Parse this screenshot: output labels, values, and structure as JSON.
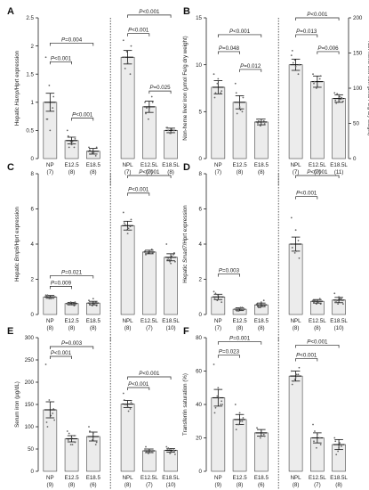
{
  "chart_data": [
    {
      "panel": "A",
      "type": "bar",
      "ylabel": "Hepatic Hamp/Hprt expression",
      "ylim": [
        0,
        2.5
      ],
      "yticks": [
        0,
        0.5,
        1.0,
        1.5,
        2.0,
        2.5
      ],
      "categories": [
        "NP",
        "E12.5",
        "E18.5",
        "NPL",
        "E12.5L",
        "E18.5L"
      ],
      "n": [
        "(7)",
        "(8)",
        "(8)",
        "(7)",
        "(7)",
        "(8)"
      ],
      "values": [
        1.0,
        0.32,
        0.13,
        1.8,
        0.92,
        0.5
      ],
      "errors": [
        0.16,
        0.06,
        0.05,
        0.12,
        0.1,
        0.04
      ],
      "points": [
        [
          1.8,
          1.3,
          0.9,
          0.7,
          0.5,
          1.1,
          0.7
        ],
        [
          0.5,
          0.3,
          0.2,
          0.4,
          0.25,
          0.35,
          0.2,
          0.3
        ],
        [
          0.2,
          0.1,
          0.05,
          0.15,
          0.1,
          0.2,
          0.08,
          0.12
        ],
        [
          2.1,
          1.9,
          1.5,
          1.8,
          1.7,
          2.0,
          1.6
        ],
        [
          1.0,
          0.7,
          1.1,
          0.8,
          0.9,
          1.0,
          0.9
        ],
        [
          0.55,
          0.45,
          0.5,
          0.55,
          0.45,
          0.5,
          0.5,
          0.52
        ]
      ],
      "brackets": [
        {
          "from": 0,
          "to": 2,
          "label": "P=0.004",
          "y": 2.05
        },
        {
          "from": 0,
          "to": 1,
          "label": "P<0.001",
          "y": 1.72
        },
        {
          "from": 1,
          "to": 2,
          "label": "P<0.001",
          "y": 0.72
        },
        {
          "from": 3,
          "to": 5,
          "label": "P<0.001",
          "y": 2.55
        },
        {
          "from": 3,
          "to": 4,
          "label": "P<0.001",
          "y": 2.22
        },
        {
          "from": 4,
          "to": 5,
          "label": "P=0.025",
          "y": 1.2
        }
      ]
    },
    {
      "panel": "B",
      "type": "bar",
      "ylabel": "Non-heme liver iron (μmol Fe/g dry weight)",
      "ylabel_right": "Non-heme liver iron (μmol Fe/g dry weight)",
      "ylim": [
        0,
        15
      ],
      "yticks": [
        0,
        5,
        10,
        15
      ],
      "ylim_right": [
        0,
        200
      ],
      "yticks_right": [
        0,
        50,
        100,
        150,
        200
      ],
      "categories": [
        "NP",
        "E12.5",
        "E18.5",
        "NPL",
        "E12.5L",
        "E18.5L"
      ],
      "n": [
        "(7)",
        "(8)",
        "(8)",
        "(7)",
        "(7)",
        "(11)"
      ],
      "values": [
        7.6,
        6.0,
        3.9,
        10.0,
        8.2,
        6.4
      ],
      "errors": [
        0.7,
        0.7,
        0.3,
        0.6,
        0.6,
        0.4
      ],
      "points": [
        [
          9,
          8,
          7,
          6.5,
          8.5,
          7.2,
          7
        ],
        [
          8,
          6,
          5,
          7,
          5.5,
          6.5,
          4.8,
          5.2
        ],
        [
          4.2,
          3.5,
          4,
          3.8,
          4.1,
          3.7,
          4.0,
          3.9
        ],
        [
          11,
          10.5,
          9,
          11.5,
          9.8,
          10,
          10.2
        ],
        [
          9,
          7.5,
          8.5,
          8,
          7.8,
          8.8,
          8.2
        ],
        [
          7,
          6,
          6.5,
          6.2,
          6.8,
          6.4,
          5.9,
          6.6,
          6.1,
          6.9,
          6.3
        ]
      ],
      "brackets": [
        {
          "from": 0,
          "to": 2,
          "label": "P<0.001",
          "y": 13.2
        },
        {
          "from": 0,
          "to": 1,
          "label": "P=0.048",
          "y": 11.4
        },
        {
          "from": 1,
          "to": 2,
          "label": "P=0.012",
          "y": 9.5
        },
        {
          "from": 3,
          "to": 5,
          "label": "P<0.001",
          "y": 15.0
        },
        {
          "from": 3,
          "to": 4,
          "label": "P=0.013",
          "y": 13.2
        },
        {
          "from": 4,
          "to": 5,
          "label": "P=0.006",
          "y": 11.4
        }
      ]
    },
    {
      "panel": "C",
      "type": "bar",
      "ylabel": "Hepatic Bmp6/Hprt expression",
      "ylim": [
        0,
        8
      ],
      "yticks": [
        0,
        2,
        4,
        6,
        8
      ],
      "categories": [
        "NP",
        "E12.5",
        "E18.5",
        "NPL",
        "E12.5L",
        "E18.5L"
      ],
      "n": [
        "(8)",
        "(8)",
        "(8)",
        "(8)",
        "(7)",
        "(10)"
      ],
      "values": [
        1.0,
        0.62,
        0.65,
        5.05,
        3.55,
        3.25
      ],
      "errors": [
        0.08,
        0.07,
        0.1,
        0.25,
        0.1,
        0.2
      ],
      "points": [
        [
          1.1,
          0.9,
          1.0,
          1.05,
          0.95,
          1.0,
          1.1,
          0.9
        ],
        [
          0.6,
          0.7,
          0.5,
          0.65,
          0.55,
          0.7,
          0.6,
          0.65
        ],
        [
          0.8,
          0.5,
          0.7,
          0.6,
          0.9,
          0.5,
          0.65,
          0.6
        ],
        [
          5.8,
          4.8,
          5.0,
          5.2,
          4.6,
          5.4,
          5.1,
          4.9
        ],
        [
          3.6,
          3.5,
          3.7,
          3.4,
          3.6,
          3.5,
          3.55
        ],
        [
          4.0,
          3.0,
          3.4,
          3.1,
          2.9,
          3.5,
          3.2,
          3.3,
          3.0,
          3.1
        ]
      ],
      "brackets": [
        {
          "from": 0,
          "to": 2,
          "label": "P=0.021",
          "y": 2.2
        },
        {
          "from": 0,
          "to": 1,
          "label": "P=0.009",
          "y": 1.6
        },
        {
          "from": 3,
          "to": 5,
          "label": "P<0.001",
          "y": 7.9
        },
        {
          "from": 3,
          "to": 4,
          "label": "P<0.001",
          "y": 6.9
        }
      ]
    },
    {
      "panel": "D",
      "type": "bar",
      "ylabel": "Hepatic Smad7/Hprt expression",
      "ylim": [
        0,
        8
      ],
      "yticks": [
        0,
        2,
        4,
        6,
        8
      ],
      "categories": [
        "NP",
        "E12.5",
        "E18.5",
        "NPL",
        "E12.5L",
        "E18.5L"
      ],
      "n": [
        "(7)",
        "(8)",
        "(8)",
        "(8)",
        "(8)",
        "(10)"
      ],
      "values": [
        1.0,
        0.3,
        0.55,
        4.0,
        0.75,
        0.82
      ],
      "errors": [
        0.15,
        0.08,
        0.1,
        0.4,
        0.1,
        0.15
      ],
      "points": [
        [
          1.3,
          0.8,
          1.0,
          0.9,
          1.1,
          0.7,
          1.2
        ],
        [
          0.3,
          0.2,
          0.4,
          0.25,
          0.35,
          0.3,
          0.2,
          0.4
        ],
        [
          0.6,
          0.4,
          0.8,
          0.5,
          0.7,
          0.5,
          0.4,
          0.5
        ],
        [
          5.5,
          3.5,
          4.2,
          3.8,
          4.8,
          3.2,
          4.0,
          3.6
        ],
        [
          0.8,
          0.6,
          0.9,
          0.7,
          0.8,
          0.6,
          0.8,
          0.7
        ],
        [
          1.2,
          0.6,
          0.9,
          0.7,
          1.0,
          0.8,
          0.7,
          0.9,
          0.6,
          0.8
        ]
      ],
      "brackets": [
        {
          "from": 0,
          "to": 1,
          "label": "P=0.003",
          "y": 2.3
        },
        {
          "from": 3,
          "to": 5,
          "label": "P<0.001",
          "y": 7.9
        },
        {
          "from": 3,
          "to": 4,
          "label": "P<0.001",
          "y": 6.7
        }
      ]
    },
    {
      "panel": "E",
      "type": "bar",
      "ylabel": "Serum iron (μg/dL)",
      "ylim": [
        0,
        300
      ],
      "yticks": [
        0,
        50,
        100,
        150,
        200,
        250,
        300
      ],
      "categories": [
        "NP",
        "E12.5",
        "E18.5",
        "NPL",
        "E12.5L",
        "E18.5L"
      ],
      "n": [
        "(9)",
        "(8)",
        "(6)",
        "(8)",
        "(7)",
        "(10)"
      ],
      "values": [
        138,
        73,
        78,
        151,
        46,
        47
      ],
      "errors": [
        18,
        7,
        10,
        8,
        4,
        4
      ],
      "points": [
        [
          240,
          160,
          130,
          110,
          120,
          140,
          100,
          125,
          115
        ],
        [
          90,
          60,
          80,
          70,
          75,
          65,
          85,
          60
        ],
        [
          100,
          70,
          60,
          90,
          85,
          65
        ],
        [
          175,
          150,
          140,
          160,
          145,
          155,
          150,
          135
        ],
        [
          50,
          40,
          45,
          55,
          48,
          42,
          44
        ],
        [
          55,
          40,
          48,
          50,
          42,
          46,
          52,
          44,
          38,
          50
        ]
      ],
      "brackets": [
        {
          "from": 0,
          "to": 2,
          "label": "P=0.003",
          "y": 280
        },
        {
          "from": 0,
          "to": 1,
          "label": "P<0.001",
          "y": 258
        },
        {
          "from": 3,
          "to": 5,
          "label": "P<0.001",
          "y": 212
        },
        {
          "from": 3,
          "to": 4,
          "label": "P<0.001",
          "y": 188
        }
      ]
    },
    {
      "panel": "F",
      "type": "bar",
      "ylabel": "Transferrin saturation (%)",
      "ylim": [
        0,
        80
      ],
      "yticks": [
        0,
        20,
        40,
        60,
        80
      ],
      "categories": [
        "NP",
        "E12.5",
        "E18.5",
        "NPL",
        "E12.5L",
        "E18.5L"
      ],
      "n": [
        "(9)",
        "(8)",
        "(6)",
        "(8)",
        "(7)",
        "(8)"
      ],
      "values": [
        44,
        31,
        23,
        57,
        20,
        16
      ],
      "errors": [
        5,
        3,
        2,
        3,
        3,
        3
      ],
      "points": [
        [
          64,
          45,
          40,
          35,
          50,
          42,
          38,
          44,
          40
        ],
        [
          40,
          28,
          30,
          25,
          35,
          32,
          28,
          30
        ],
        [
          26,
          20,
          22,
          25,
          24,
          21
        ],
        [
          60,
          55,
          58,
          52,
          56,
          62,
          54,
          58
        ],
        [
          28,
          14,
          20,
          18,
          22,
          16,
          24
        ],
        [
          20,
          12,
          15,
          18,
          14,
          16,
          10,
          17
        ]
      ],
      "brackets": [
        {
          "from": 0,
          "to": 2,
          "label": "P=0.001",
          "y": 77.5
        },
        {
          "from": 0,
          "to": 1,
          "label": "P=0.023",
          "y": 69.5
        },
        {
          "from": 3,
          "to": 5,
          "label": "P<0.001",
          "y": 75.5
        },
        {
          "from": 3,
          "to": 4,
          "label": "P<0.001",
          "y": 67.5
        }
      ]
    }
  ]
}
